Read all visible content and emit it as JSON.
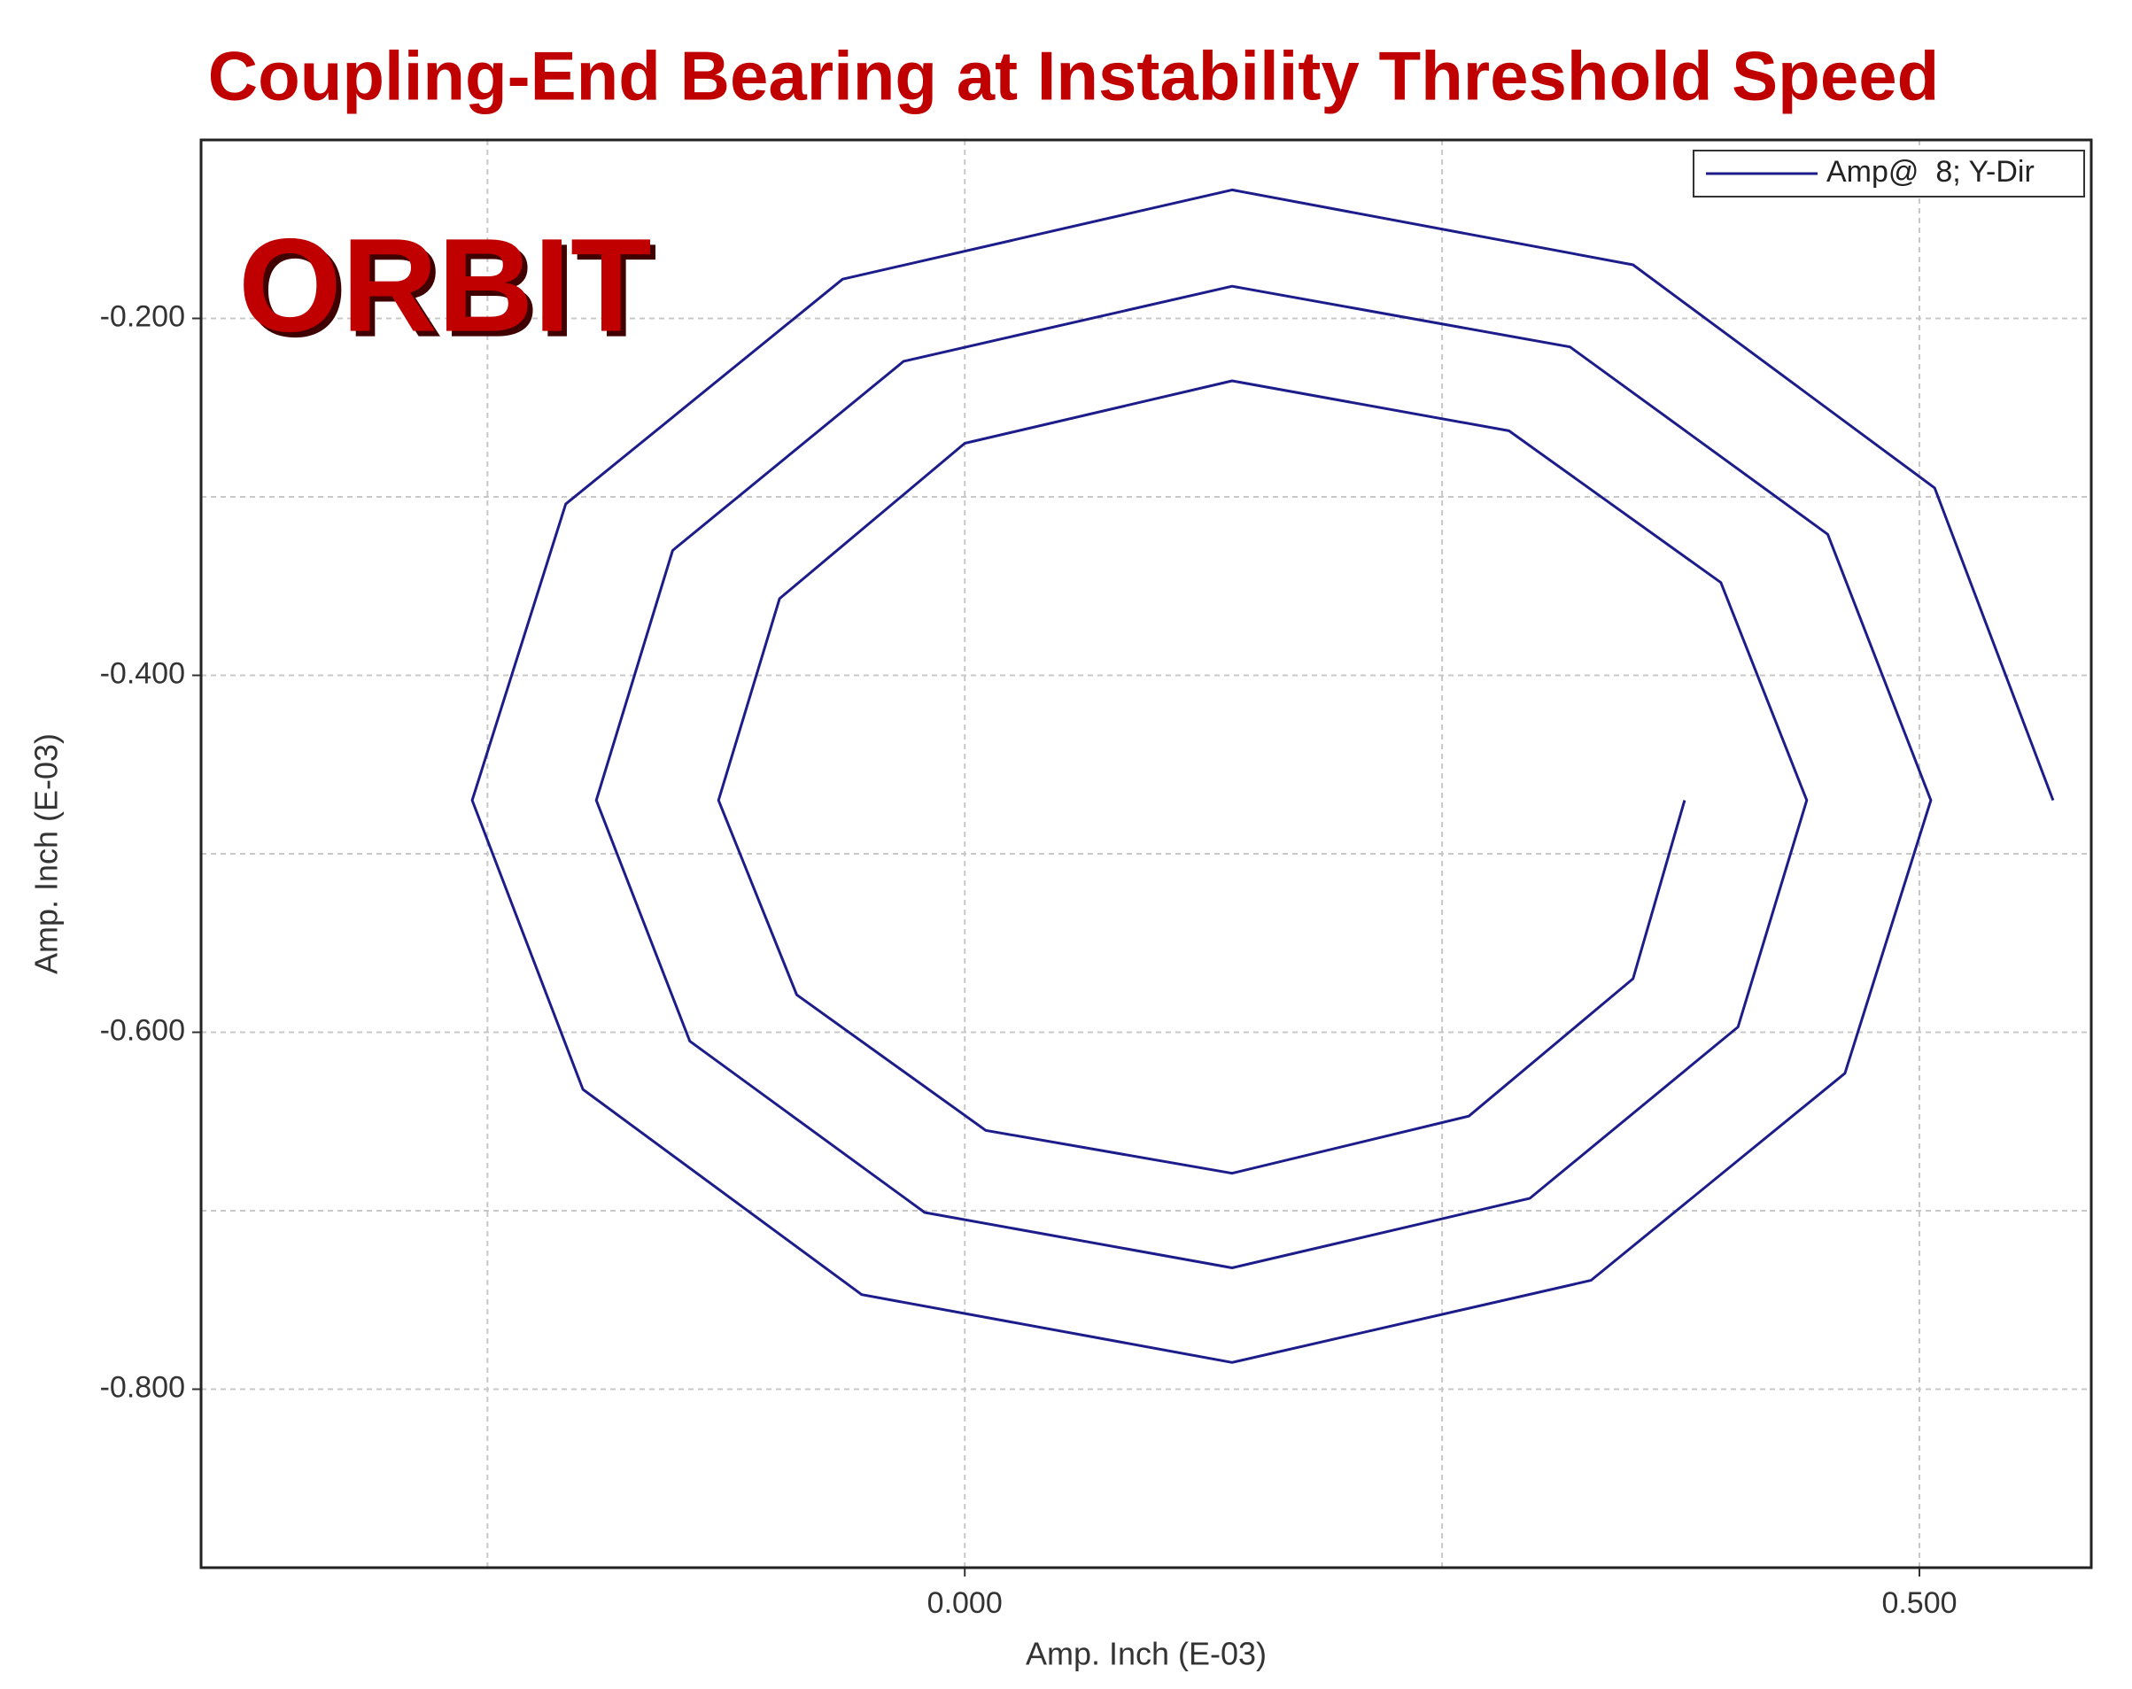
{
  "chart_data": {
    "type": "line",
    "title": "Coupling-End Bearing at Instability Threshold Speed",
    "annotation": "ORBIT",
    "xlabel": "Amp. Inch (E-03)",
    "ylabel": "Amp. Inch (E-03)",
    "xlim": [
      -0.4,
      0.59
    ],
    "ylim": [
      -0.9,
      -0.1
    ],
    "xticks": [
      {
        "value": 0,
        "label": "0.000"
      },
      {
        "value": 0.5,
        "label": "0.500"
      }
    ],
    "yticks": [
      {
        "value": -0.2,
        "label": "-0.200"
      },
      {
        "value": -0.4,
        "label": "-0.400"
      },
      {
        "value": -0.6,
        "label": "-0.600"
      },
      {
        "value": -0.8,
        "label": "-0.800"
      }
    ],
    "xminor": [
      -0.25,
      0.25
    ],
    "yminor": [
      -0.3,
      -0.5,
      -0.7
    ],
    "grid": true,
    "legend": "upper right",
    "series": [
      {
        "name": "Amp@  8; Y-Dir",
        "color": "#1c1c8a",
        "x": [
          0.57,
          0.508,
          0.35,
          0.14,
          -0.064,
          -0.209,
          -0.258,
          -0.2,
          -0.054,
          0.14,
          0.328,
          0.461,
          0.506,
          0.452,
          0.317,
          0.14,
          -0.032,
          -0.153,
          -0.193,
          -0.144,
          -0.021,
          0.14,
          0.296,
          0.405,
          0.441,
          0.396,
          0.285,
          0.14,
          0.0,
          -0.097,
          -0.129,
          -0.088,
          0.011,
          0.14,
          0.264,
          0.35,
          0.377
        ],
        "values": [
          -0.47,
          -0.295,
          -0.17,
          -0.128,
          -0.178,
          -0.304,
          -0.47,
          -0.632,
          -0.747,
          -0.785,
          -0.739,
          -0.623,
          -0.47,
          -0.321,
          -0.216,
          -0.182,
          -0.224,
          -0.33,
          -0.47,
          -0.605,
          -0.701,
          -0.732,
          -0.693,
          -0.597,
          -0.47,
          -0.348,
          -0.263,
          -0.235,
          -0.27,
          -0.357,
          -0.47,
          -0.579,
          -0.655,
          -0.679,
          -0.647,
          -0.57,
          -0.47
        ]
      }
    ]
  }
}
